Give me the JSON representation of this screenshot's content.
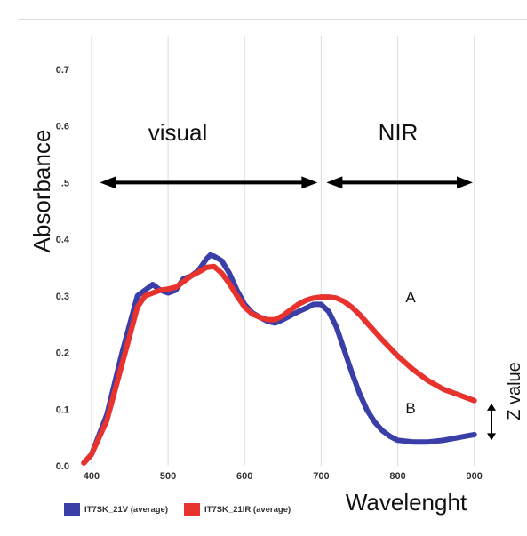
{
  "chart_data": {
    "type": "line",
    "xlabel": "Wavelenght",
    "ylabel": "Absorbance",
    "xlim": [
      385,
      905
    ],
    "ylim": [
      0.0,
      0.75
    ],
    "x_ticks": [
      "400",
      "500",
      "600",
      "700",
      "800",
      "900"
    ],
    "x_tick_values": [
      400,
      500,
      600,
      700,
      800,
      900
    ],
    "y_ticks": [
      "0.0",
      "0.1",
      "0.2",
      "0.3",
      "0.4",
      ".5",
      "0.6",
      "0.7"
    ],
    "y_tick_values": [
      0.0,
      0.1,
      0.2,
      0.3,
      0.4,
      0.5,
      0.6,
      0.7
    ],
    "grid": "vertical",
    "series": [
      {
        "name": "IT7SK_21V (average)",
        "color": "#3a3fa8",
        "curve_label": "B",
        "x": [
          390,
          400,
          420,
          440,
          460,
          470,
          480,
          490,
          500,
          510,
          520,
          530,
          540,
          550,
          555,
          560,
          570,
          580,
          590,
          600,
          610,
          620,
          630,
          640,
          650,
          660,
          670,
          680,
          690,
          700,
          710,
          720,
          730,
          740,
          750,
          760,
          770,
          780,
          790,
          800,
          820,
          840,
          860,
          880,
          900
        ],
        "y": [
          0.005,
          0.02,
          0.09,
          0.2,
          0.3,
          0.31,
          0.32,
          0.31,
          0.305,
          0.31,
          0.33,
          0.335,
          0.345,
          0.365,
          0.372,
          0.37,
          0.362,
          0.34,
          0.31,
          0.285,
          0.27,
          0.262,
          0.255,
          0.252,
          0.258,
          0.265,
          0.272,
          0.278,
          0.285,
          0.285,
          0.272,
          0.245,
          0.205,
          0.165,
          0.128,
          0.098,
          0.077,
          0.062,
          0.052,
          0.045,
          0.042,
          0.042,
          0.045,
          0.05,
          0.055
        ]
      },
      {
        "name": "IT7SK_21IR (average)",
        "color": "#e8322e",
        "curve_label": "A",
        "x": [
          390,
          400,
          420,
          440,
          460,
          470,
          480,
          490,
          500,
          510,
          520,
          530,
          540,
          550,
          560,
          570,
          580,
          590,
          600,
          610,
          620,
          630,
          640,
          650,
          660,
          670,
          680,
          690,
          700,
          710,
          720,
          730,
          740,
          750,
          760,
          770,
          780,
          790,
          800,
          820,
          840,
          860,
          880,
          900
        ],
        "y": [
          0.005,
          0.02,
          0.08,
          0.18,
          0.28,
          0.3,
          0.305,
          0.31,
          0.312,
          0.315,
          0.325,
          0.335,
          0.342,
          0.35,
          0.352,
          0.34,
          0.322,
          0.3,
          0.28,
          0.268,
          0.262,
          0.258,
          0.258,
          0.265,
          0.275,
          0.285,
          0.292,
          0.296,
          0.298,
          0.298,
          0.296,
          0.29,
          0.28,
          0.267,
          0.252,
          0.237,
          0.222,
          0.208,
          0.194,
          0.17,
          0.15,
          0.135,
          0.125,
          0.115
        ]
      }
    ],
    "annotations": {
      "region_visual": "visual",
      "region_nir": "NIR",
      "z_value": "Z value",
      "label_a": "A",
      "label_b": "B",
      "arrow_y": 0.5,
      "visual_range": [
        390,
        700
      ],
      "nir_range": [
        700,
        905
      ]
    },
    "legend_position": "bottom-left"
  }
}
